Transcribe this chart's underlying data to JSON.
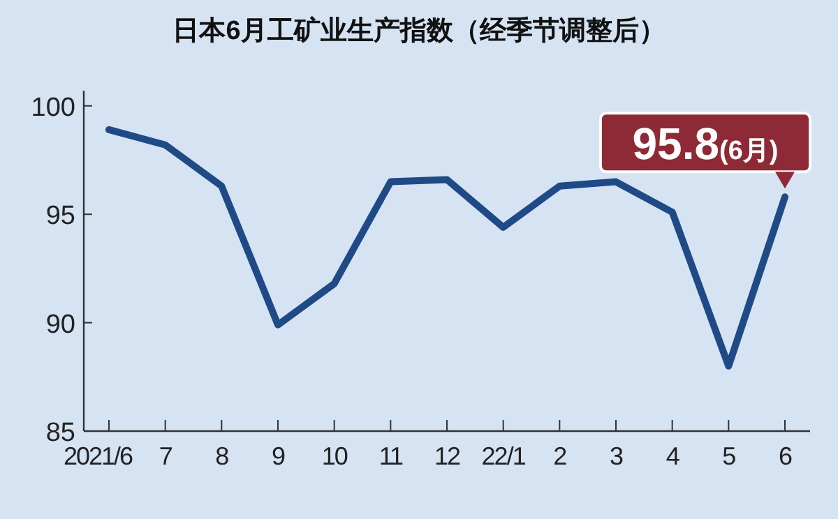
{
  "chart_data": {
    "type": "line",
    "title": "日本6月工矿业生产指数（经季节调整后）",
    "categories": [
      "2021/6",
      "7",
      "8",
      "9",
      "10",
      "11",
      "12",
      "22/1",
      "2",
      "3",
      "4",
      "5",
      "6"
    ],
    "series": [
      {
        "color": "#1f4a85",
        "values": [
          98.9,
          98.2,
          96.3,
          89.9,
          91.8,
          96.5,
          96.6,
          94.4,
          96.3,
          96.5,
          95.1,
          88.0,
          95.8
        ]
      }
    ],
    "ylim": [
      85,
      100.7
    ],
    "yticks": [
      85,
      90,
      95,
      100
    ],
    "marker": "none",
    "line_style": "solid",
    "annotations": [
      {
        "text": "95.8(6月)",
        "x": "6",
        "y": 95.8
      }
    ]
  }
}
